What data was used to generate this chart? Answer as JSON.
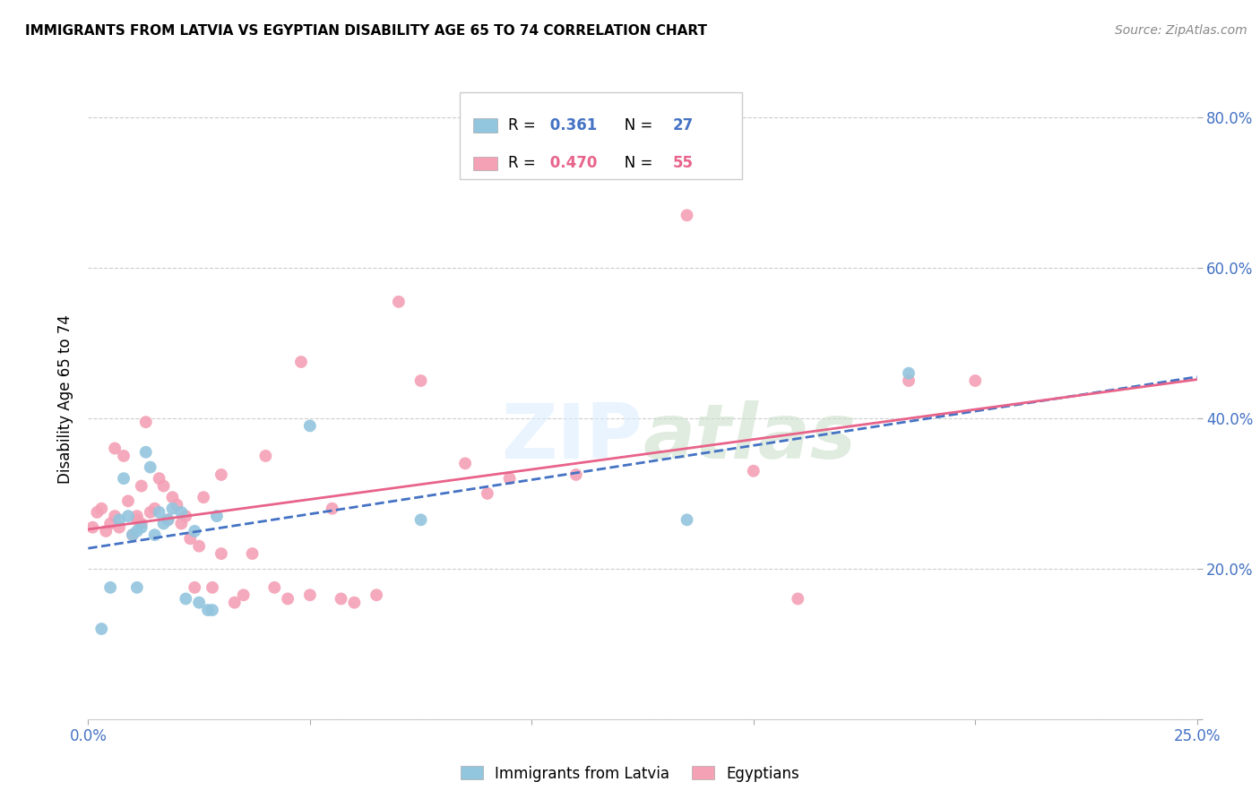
{
  "title": "IMMIGRANTS FROM LATVIA VS EGYPTIAN DISABILITY AGE 65 TO 74 CORRELATION CHART",
  "source": "Source: ZipAtlas.com",
  "ylabel": "Disability Age 65 to 74",
  "xlim": [
    0.0,
    0.25
  ],
  "ylim": [
    0.0,
    0.85
  ],
  "xticks": [
    0.0,
    0.05,
    0.1,
    0.15,
    0.2,
    0.25
  ],
  "xticklabels": [
    "0.0%",
    "",
    "",
    "",
    "",
    "25.0%"
  ],
  "yticks": [
    0.0,
    0.2,
    0.4,
    0.6,
    0.8
  ],
  "yticklabels": [
    "",
    "20.0%",
    "40.0%",
    "60.0%",
    "80.0%"
  ],
  "latvia_R": 0.361,
  "latvia_N": 27,
  "egypt_R": 0.47,
  "egypt_N": 55,
  "latvia_color": "#92c5de",
  "egypt_color": "#f4a0b5",
  "latvia_line_color": "#4472c4",
  "egypt_line_color": "#e8638a",
  "watermark": "ZIPatlas",
  "legend_label_latvia": "Immigrants from Latvia",
  "legend_label_egypt": "Egyptians",
  "latvia_x": [
    0.003,
    0.005,
    0.007,
    0.008,
    0.009,
    0.01,
    0.011,
    0.011,
    0.012,
    0.013,
    0.014,
    0.015,
    0.016,
    0.017,
    0.018,
    0.019,
    0.021,
    0.022,
    0.024,
    0.025,
    0.027,
    0.028,
    0.029,
    0.05,
    0.075,
    0.135,
    0.185
  ],
  "latvia_y": [
    0.12,
    0.175,
    0.265,
    0.32,
    0.27,
    0.245,
    0.25,
    0.175,
    0.255,
    0.355,
    0.335,
    0.245,
    0.275,
    0.26,
    0.265,
    0.28,
    0.275,
    0.16,
    0.25,
    0.155,
    0.145,
    0.145,
    0.27,
    0.39,
    0.265,
    0.265,
    0.46
  ],
  "egypt_x": [
    0.001,
    0.002,
    0.003,
    0.004,
    0.005,
    0.006,
    0.006,
    0.007,
    0.008,
    0.009,
    0.01,
    0.011,
    0.011,
    0.012,
    0.012,
    0.013,
    0.014,
    0.015,
    0.016,
    0.017,
    0.018,
    0.019,
    0.02,
    0.021,
    0.022,
    0.023,
    0.024,
    0.025,
    0.026,
    0.028,
    0.03,
    0.03,
    0.033,
    0.035,
    0.037,
    0.04,
    0.042,
    0.045,
    0.048,
    0.05,
    0.055,
    0.057,
    0.06,
    0.065,
    0.07,
    0.075,
    0.085,
    0.09,
    0.095,
    0.11,
    0.135,
    0.15,
    0.16,
    0.185,
    0.2
  ],
  "egypt_y": [
    0.255,
    0.275,
    0.28,
    0.25,
    0.26,
    0.27,
    0.36,
    0.255,
    0.35,
    0.29,
    0.245,
    0.27,
    0.265,
    0.31,
    0.26,
    0.395,
    0.275,
    0.28,
    0.32,
    0.31,
    0.265,
    0.295,
    0.285,
    0.26,
    0.27,
    0.24,
    0.175,
    0.23,
    0.295,
    0.175,
    0.22,
    0.325,
    0.155,
    0.165,
    0.22,
    0.35,
    0.175,
    0.16,
    0.475,
    0.165,
    0.28,
    0.16,
    0.155,
    0.165,
    0.555,
    0.45,
    0.34,
    0.3,
    0.32,
    0.325,
    0.67,
    0.33,
    0.16,
    0.45,
    0.45
  ]
}
